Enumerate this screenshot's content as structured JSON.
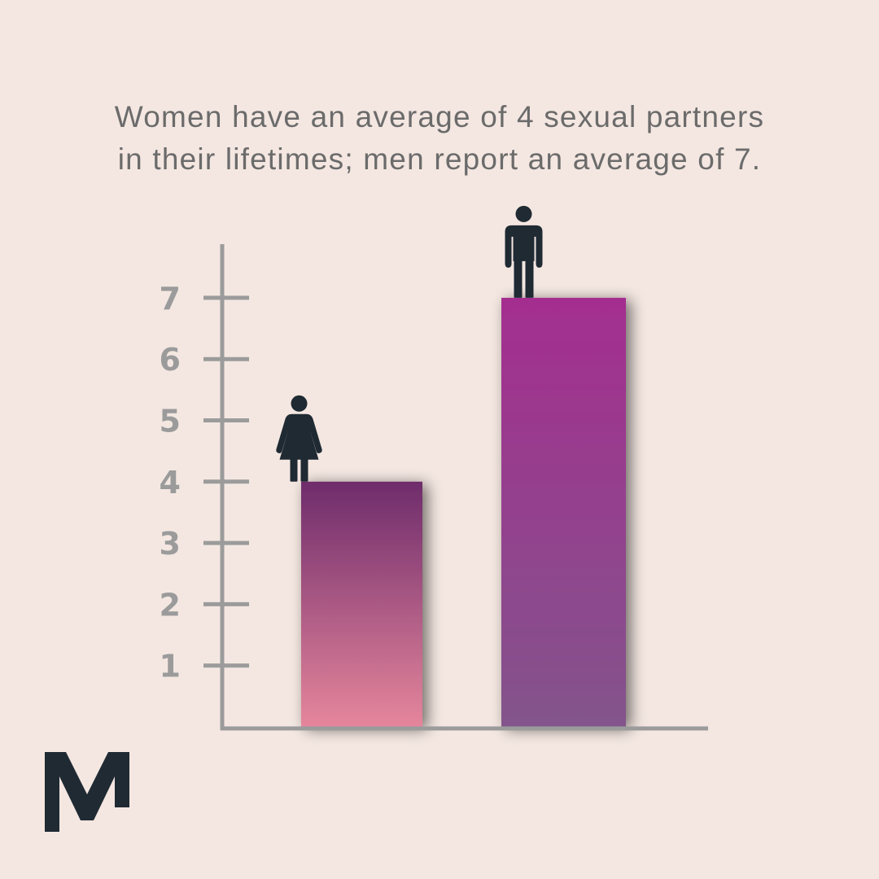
{
  "title_lines": [
    "Women have an average of 4 sexual partners",
    "in their lifetimes; men report an average of 7."
  ],
  "chart_data": {
    "type": "bar",
    "title": "Women have an average of 4 sexual partners in their lifetimes; men report an average of 7.",
    "categories": [
      "Women",
      "Men"
    ],
    "values": [
      4,
      7
    ],
    "icons": [
      "woman-icon",
      "man-icon"
    ],
    "y_ticks": [
      1,
      2,
      3,
      4,
      5,
      6,
      7
    ],
    "ylim": [
      0,
      7.8
    ],
    "xlabel": "",
    "ylabel": "",
    "grid": false,
    "legend": "none",
    "colors": {
      "women_bar_top": "#6e2c6b",
      "women_bar_bottom": "#e6869c",
      "men_bar_top": "#a42e8f",
      "men_bar_bottom": "#83548c",
      "axis": "#9b9b9b",
      "icon": "#1f2a33"
    }
  },
  "brand": {
    "logo": "m-logo-icon",
    "color": "#1f2a33"
  }
}
